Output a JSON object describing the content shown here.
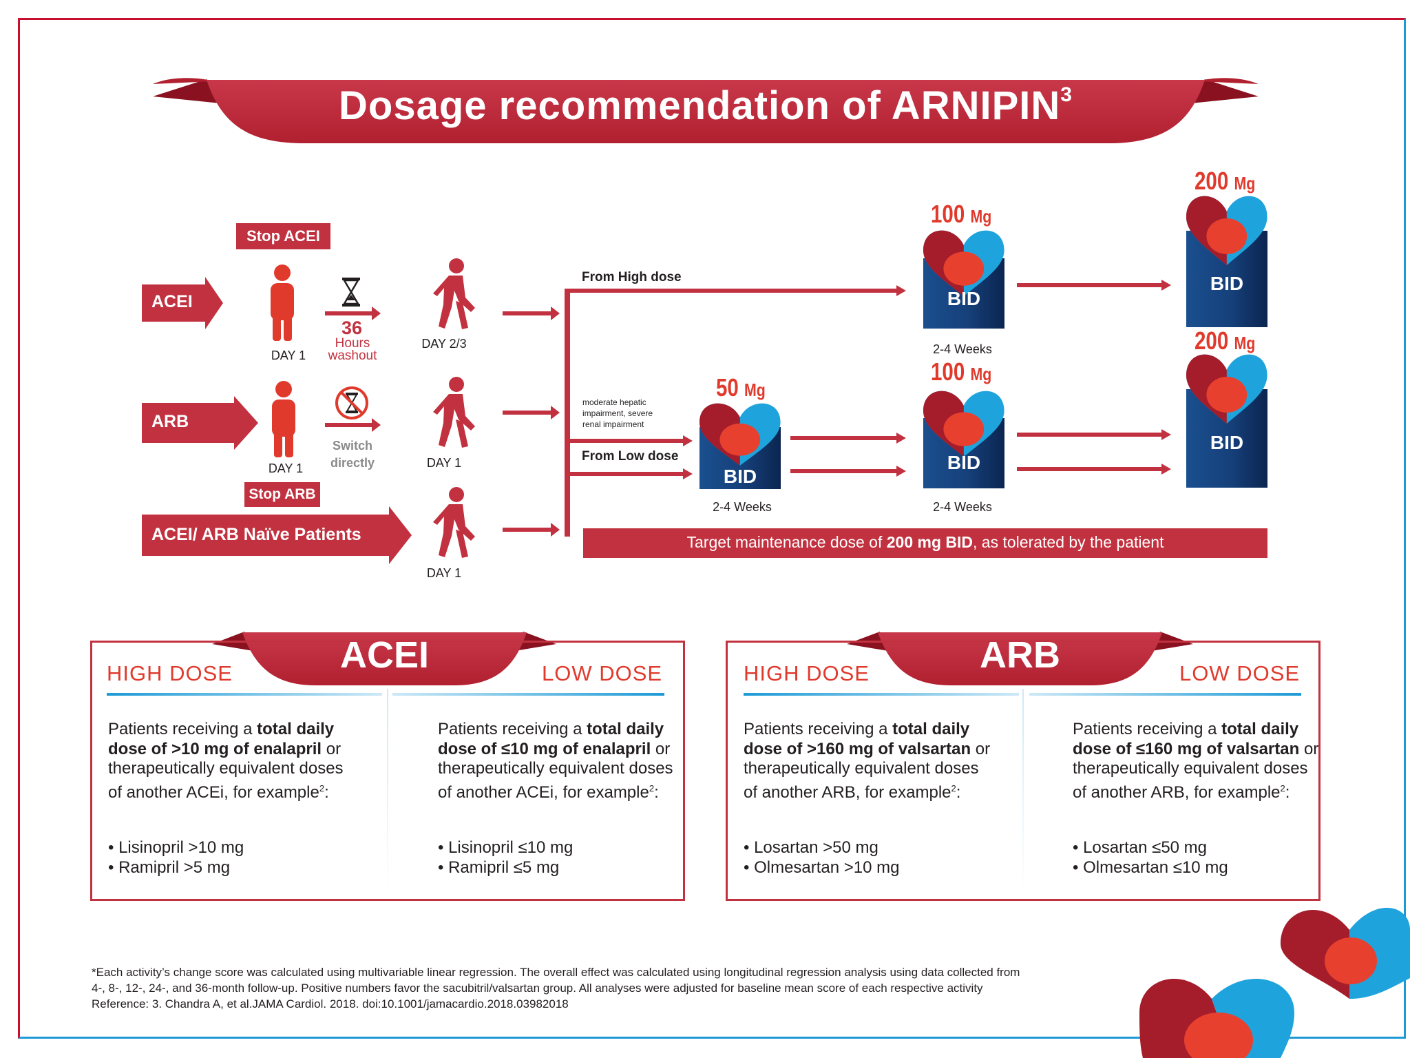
{
  "title": {
    "main": "Dosage recommendation of ARNIPIN",
    "superscript": "3"
  },
  "flow": {
    "stop_acei": "Stop ACEI",
    "stop_arb": "Stop ARB",
    "acei_label": "ACEI",
    "arb_label": "ARB",
    "naive_label": "ACEI/ ARB Naïve Patients",
    "day1_a": "DAY 1",
    "day1_b": "DAY 1",
    "day23": "DAY 2/3",
    "day1_c": "DAY 1",
    "day1_d": "DAY 1",
    "washout_num": "36",
    "washout_l1": "Hours",
    "washout_l2": "washout",
    "switch_l1": "Switch",
    "switch_l2": "directly",
    "from_high": "From High dose",
    "from_low": "From Low dose",
    "impair_l1": "moderate hepatic",
    "impair_l2": "impairment, severe",
    "impair_l3": "renal impairment",
    "target_pre": "Target maintenance dose of ",
    "target_bold": "200 mg BID",
    "target_post": ", as tolerated by the patient"
  },
  "doses": {
    "d50": {
      "num": "50",
      "unit": "Mg"
    },
    "d100a": {
      "num": "100",
      "unit": "Mg"
    },
    "d100b": {
      "num": "100",
      "unit": "Mg"
    },
    "d200a": {
      "num": "200",
      "unit": "Mg"
    },
    "d200b": {
      "num": "200",
      "unit": "Mg"
    },
    "bid": "BID",
    "weeks": "2-4 Weeks"
  },
  "acei_panel": {
    "title": "ACEI",
    "high_label": "HIGH DOSE",
    "low_label": "LOW DOSE",
    "high": {
      "p1": "Patients receiving a ",
      "b1": "total daily dose of >10 mg of enalapril",
      "p2": " or therapeutically equivalent doses of another ACEi, for example",
      "sup": "2",
      "colon": ":",
      "items": [
        "Lisinopril >10 mg",
        "Ramipril >5 mg"
      ]
    },
    "low": {
      "p1": "Patients receiving a ",
      "b1": "total daily dose of ≤10 mg of enalapril",
      "p2": " or therapeutically equivalent doses of another ACEi, for example",
      "sup": "2",
      "colon": ":",
      "items": [
        "Lisinopril ≤10 mg",
        "Ramipril ≤5 mg"
      ]
    }
  },
  "arb_panel": {
    "title": "ARB",
    "high_label": "HIGH DOSE",
    "low_label": "LOW DOSE",
    "high": {
      "p1": "Patients receiving a ",
      "b1": "total daily dose of >160 mg of valsartan",
      "p2": " or therapeutically equivalent doses of another ARB, for example",
      "sup": "2",
      "colon": ":",
      "items": [
        "Losartan >50 mg",
        "Olmesartan >10 mg"
      ]
    },
    "low": {
      "p1": "Patients receiving a ",
      "b1": "total daily dose of ≤160 mg of valsartan",
      "p2": " or therapeutically equivalent doses of another ARB, for example",
      "sup": "2",
      "colon": ":",
      "items": [
        "Losartan ≤50 mg",
        "Olmesartan ≤10 mg"
      ]
    }
  },
  "footnote": {
    "line1": "*Each activity’s change score was calculated using multivariable linear regression. The overall effect was calculated using longitudinal regression analysis using data collected from",
    "line2": "4-, 8-, 12-, 24-, and 36-month follow-up. Positive numbers favor the sacubitril/valsartan group. All analyses were adjusted for baseline mean score of each respective activity",
    "line3": "Reference: 3. Chandra A, et al.JAMA Cardiol. 2018. doi:10.1001/jamacardio.2018.03982018"
  },
  "colors": {
    "brand_red": "#c2313f",
    "dark_red": "#a5192a",
    "accent_red": "#e03a2d",
    "brand_blue": "#1d9ad6",
    "navy": "#12356b"
  },
  "icons": [
    "standing-person-icon",
    "walking-person-icon",
    "hourglass-icon",
    "no-hourglass-icon",
    "heart-pill-logo-icon",
    "arrow-right-icon"
  ]
}
